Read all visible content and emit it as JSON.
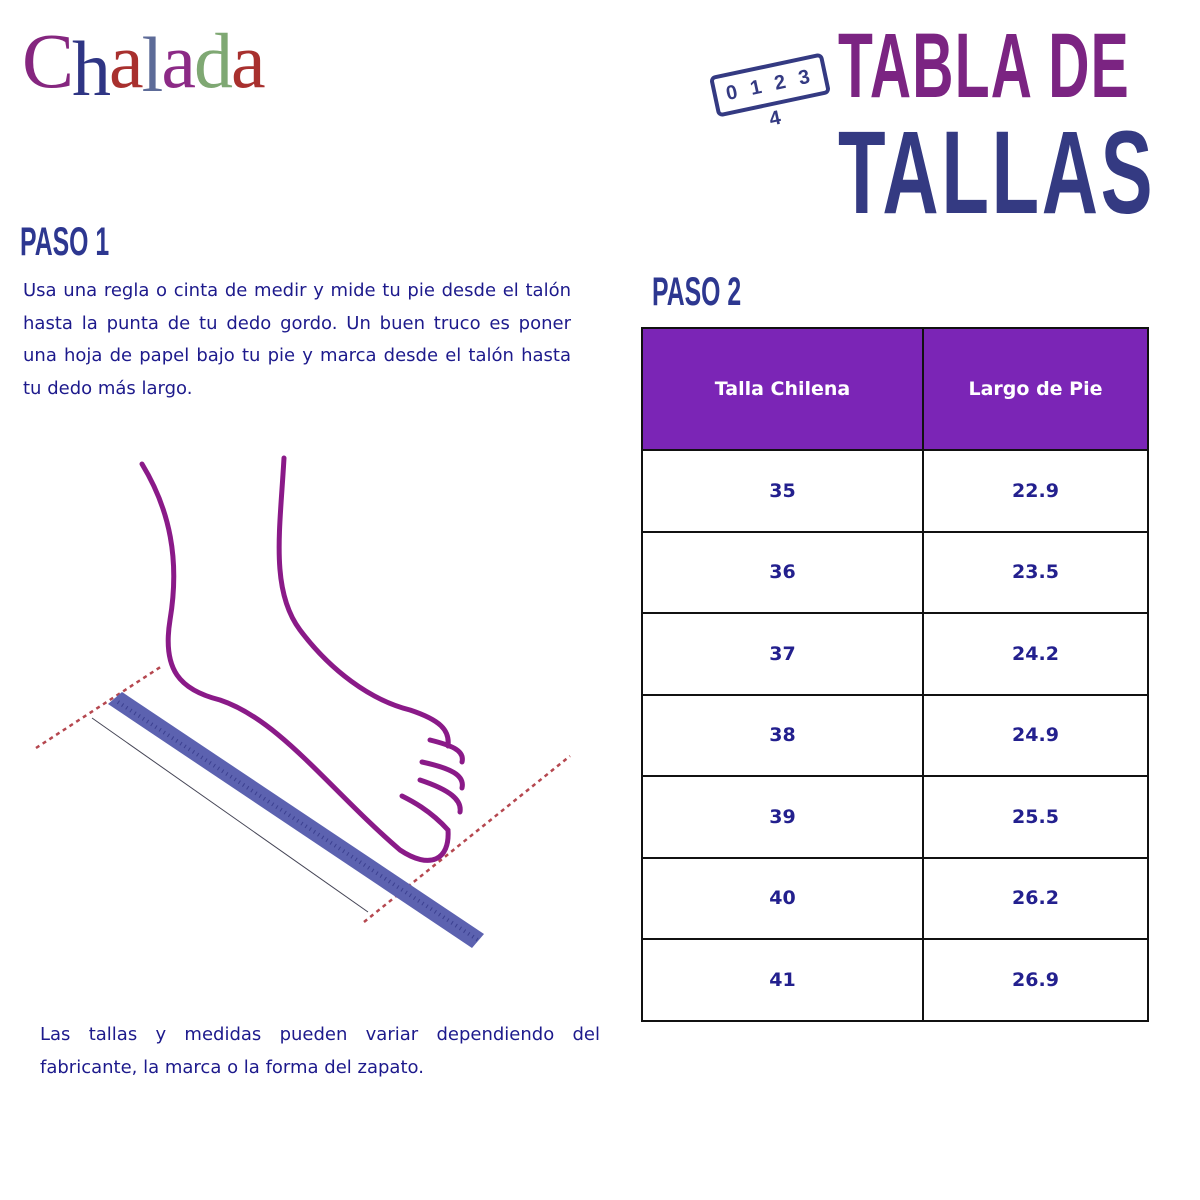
{
  "brand": {
    "logo": "Chalada",
    "letters": [
      "C",
      "h",
      "a",
      "l",
      "a",
      "d",
      "a"
    ],
    "letter_colors": [
      "#85267f",
      "#2f3584",
      "#a8302e",
      "#5d6b98",
      "#8c2a86",
      "#7fa873",
      "#a8302e"
    ]
  },
  "title": {
    "line1": "TABLA DE",
    "line2": "TALLAS",
    "ruler_icon_text": "0 1 2 3 4",
    "colors": {
      "line1": "#7b2482",
      "line2": "#343a82"
    }
  },
  "step1": {
    "heading": "PASO 1",
    "text": "Usa una regla o cinta de medir y mide tu pie desde el talón hasta la punta de tu dedo gordo. Un buen truco es poner una hoja de papel bajo tu pie y marca desde el talón hasta tu dedo más largo."
  },
  "note": "Las tallas y medidas pueden variar dependiendo del fabricante, la marca o la forma del zapato.",
  "step2": {
    "heading": "PASO 2"
  },
  "table": {
    "headers": [
      "Talla Chilena",
      "Largo de Pie"
    ],
    "header_color": "#7b25b6",
    "rows": [
      [
        "35",
        "22.9"
      ],
      [
        "36",
        "23.5"
      ],
      [
        "37",
        "24.2"
      ],
      [
        "38",
        "24.9"
      ],
      [
        "39",
        "25.5"
      ],
      [
        "40",
        "26.2"
      ],
      [
        "41",
        "26.9"
      ]
    ]
  }
}
